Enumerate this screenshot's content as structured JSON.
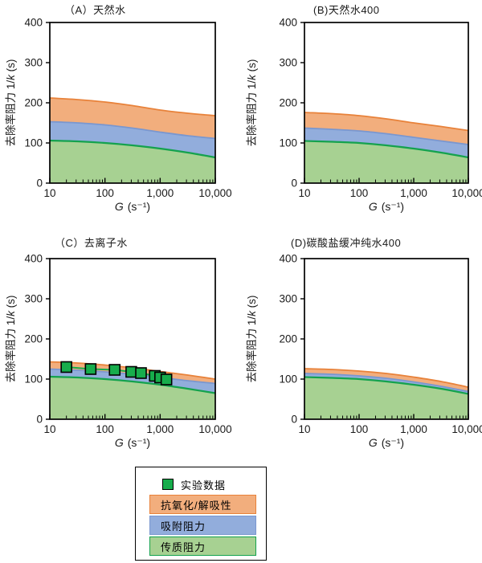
{
  "colors": {
    "mass_transfer_fill": "#A7D192",
    "mass_transfer_line": "#14A24E",
    "adsorption_fill": "#92ADDC",
    "adsorption_line": "#7A97CF",
    "antioxidation_fill": "#F2AE7D",
    "antioxidation_line": "#E8823A",
    "experimental_fill": "#17AD4C",
    "experimental_edge": "#000000",
    "axis": "#000000",
    "text": "#1a1a1a"
  },
  "axes": {
    "xlabel": "G (s⁻¹)",
    "x_label_italic": "G",
    "x_label_unit": " (s⁻¹)",
    "ylabel": "去除率阻力 1/k (s)",
    "y_label_pre": "去除率阻力 1/",
    "y_label_italic": "k",
    "y_label_post": " (s)",
    "x_scale": "log",
    "x_range": [
      10,
      10000
    ],
    "y_range": [
      0,
      400
    ],
    "x_ticks": [
      {
        "value": 10,
        "log": 1,
        "label": "10"
      },
      {
        "value": 100,
        "log": 2,
        "label": "100"
      },
      {
        "value": 1000,
        "log": 3,
        "label": "1,000"
      },
      {
        "value": 10000,
        "log": 4,
        "label": "10,000"
      }
    ],
    "y_ticks": [
      {
        "v": 0,
        "label": "0"
      },
      {
        "v": 100,
        "label": "100"
      },
      {
        "v": 200,
        "label": "200"
      },
      {
        "v": 300,
        "label": "300"
      },
      {
        "v": 400,
        "label": "400"
      }
    ],
    "grid": false
  },
  "chart_data": [
    {
      "id": "A",
      "title": "（A）天然水",
      "type": "stacked-area",
      "x_log": [
        1,
        1.5,
        2,
        2.5,
        3,
        3.5,
        4
      ],
      "layers": [
        {
          "key": "mass_transfer",
          "name": "传质阻力",
          "top": [
            106,
            104,
            100,
            94,
            86,
            76,
            64
          ]
        },
        {
          "key": "adsorption",
          "name": "吸附阻力",
          "top": [
            153,
            150,
            145,
            137,
            127,
            118,
            111
          ]
        },
        {
          "key": "antioxidation",
          "name": "抗氧化/解吸性",
          "top": [
            212,
            208,
            202,
            193,
            182,
            174,
            168
          ]
        }
      ]
    },
    {
      "id": "B",
      "title": "(B)天然水400",
      "type": "stacked-area",
      "x_log": [
        1,
        1.5,
        2,
        2.5,
        3,
        3.5,
        4
      ],
      "layers": [
        {
          "key": "mass_transfer",
          "name": "传质阻力",
          "top": [
            105,
            103,
            100,
            94,
            86,
            76,
            64
          ]
        },
        {
          "key": "adsorption",
          "name": "吸附阻力",
          "top": [
            137,
            134,
            130,
            123,
            114,
            105,
            96
          ]
        },
        {
          "key": "antioxidation",
          "name": "抗氧化/解吸性",
          "top": [
            176,
            173,
            168,
            160,
            150,
            141,
            131
          ]
        }
      ]
    },
    {
      "id": "C",
      "title": "（C）去离子水",
      "type": "stacked-area",
      "x_log": [
        1,
        1.5,
        2,
        2.5,
        3,
        3.5,
        4
      ],
      "layers": [
        {
          "key": "mass_transfer",
          "name": "传质阻力",
          "top": [
            106,
            104,
            100,
            94,
            86,
            76,
            65
          ]
        },
        {
          "key": "adsorption",
          "name": "吸附阻力",
          "top": [
            125,
            122,
            118,
            112,
            104,
            96,
            89
          ]
        },
        {
          "key": "antioxidation",
          "name": "抗氧化/解吸性",
          "top": [
            143,
            140,
            135,
            128,
            119,
            110,
            100
          ]
        }
      ],
      "experimental": {
        "name": "实验数据",
        "G": [
          20,
          55,
          150,
          300,
          450,
          800,
          1000,
          1300
        ],
        "values": [
          130,
          125,
          123,
          118,
          115,
          108,
          104,
          99
        ]
      }
    },
    {
      "id": "D",
      "title": "(D)碳酸盐缓冲纯水400",
      "type": "stacked-area",
      "x_log": [
        1,
        1.5,
        2,
        2.5,
        3,
        3.5,
        4
      ],
      "layers": [
        {
          "key": "mass_transfer",
          "name": "传质阻力",
          "top": [
            105,
            103,
            100,
            94,
            86,
            76,
            63
          ]
        },
        {
          "key": "adsorption",
          "name": "吸附阻力",
          "top": [
            114,
            112,
            108,
            102,
            93,
            82,
            69
          ]
        },
        {
          "key": "antioxidation",
          "name": "抗氧化/解吸性",
          "top": [
            126,
            124,
            120,
            114,
            105,
            94,
            80
          ]
        }
      ]
    }
  ],
  "legend": {
    "experimental_label": "实验数据",
    "items": [
      {
        "key": "antioxidation",
        "label": "抗氧化/解吸性"
      },
      {
        "key": "adsorption",
        "label": "吸附阻力"
      },
      {
        "key": "mass_transfer",
        "label": "传质阻力"
      }
    ]
  }
}
